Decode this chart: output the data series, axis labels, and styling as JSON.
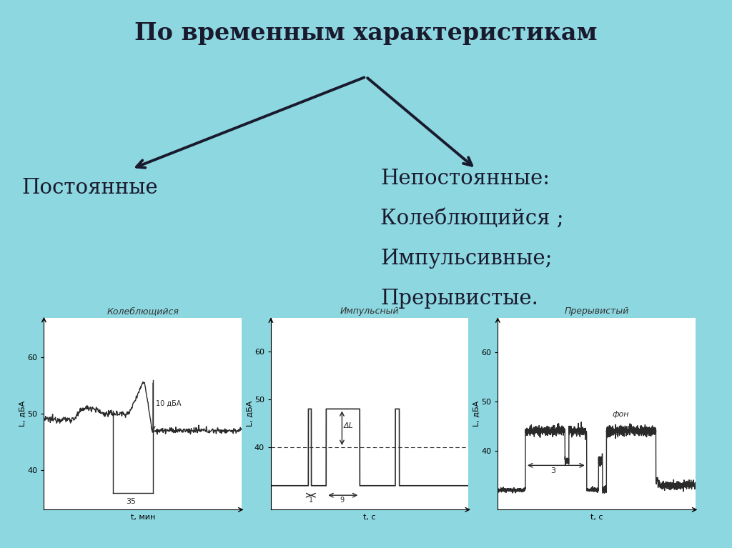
{
  "bg_color": "#8dd8e0",
  "title": "По временным характеристикам",
  "left_label": "Постоянные",
  "right_label_lines": [
    "Непостоянные:",
    "Колеблющийся ;",
    "Импульсивные;",
    "Прерывистые."
  ],
  "title_fontsize": 24,
  "label_fontsize": 21,
  "chart_titles": [
    "Колеблющийся",
    "Импульсный",
    "Прерывистый"
  ],
  "chart_xlabels": [
    "t, мин",
    "t, с",
    "t, с"
  ],
  "chart_ylabel": "L, дБА",
  "yticks": [
    40,
    50,
    60
  ],
  "arrow_color": "#1a1a2e",
  "text_color": "#1a1a2e",
  "chart_line_color": "#2a2a2a",
  "chart_bg": "#f8f8f8"
}
